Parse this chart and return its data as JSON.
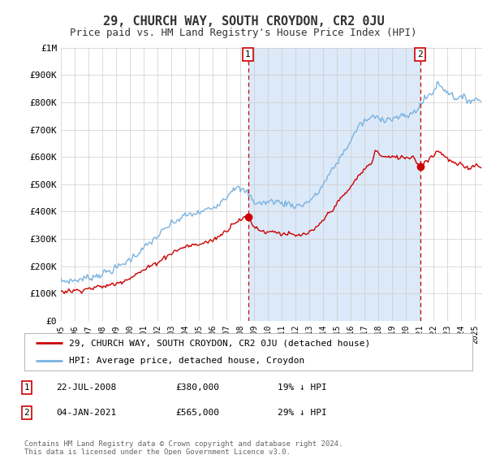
{
  "title": "29, CHURCH WAY, SOUTH CROYDON, CR2 0JU",
  "subtitle": "Price paid vs. HM Land Registry's House Price Index (HPI)",
  "background_color": "#ffffff",
  "plot_bg_color": "#ffffff",
  "grid_color": "#cccccc",
  "shade_color": "#dce9f8",
  "hpi_color": "#7ab3e0",
  "sale_color": "#cc0000",
  "vline_color": "#cc0000",
  "marker_color": "#cc0000",
  "label1": "1",
  "label2": "2",
  "legend_sale": "29, CHURCH WAY, SOUTH CROYDON, CR2 0JU (detached house)",
  "legend_hpi": "HPI: Average price, detached house, Croydon",
  "annotation1_date": "22-JUL-2008",
  "annotation1_price": "£380,000",
  "annotation1_hpi": "19% ↓ HPI",
  "annotation2_date": "04-JAN-2021",
  "annotation2_price": "£565,000",
  "annotation2_hpi": "29% ↓ HPI",
  "footnote": "Contains HM Land Registry data © Crown copyright and database right 2024.\nThis data is licensed under the Open Government Licence v3.0.",
  "sale1_x": 2008.55,
  "sale1_y": 380000,
  "sale2_x": 2021.01,
  "sale2_y": 565000,
  "ylim": [
    0,
    1000000
  ],
  "yticks": [
    0,
    100000,
    200000,
    300000,
    400000,
    500000,
    600000,
    700000,
    800000,
    900000,
    1000000
  ],
  "ytick_labels": [
    "£0",
    "£100K",
    "£200K",
    "£300K",
    "£400K",
    "£500K",
    "£600K",
    "£700K",
    "£800K",
    "£900K",
    "£1M"
  ],
  "xlim_min": 1995.0,
  "xlim_max": 2025.5
}
